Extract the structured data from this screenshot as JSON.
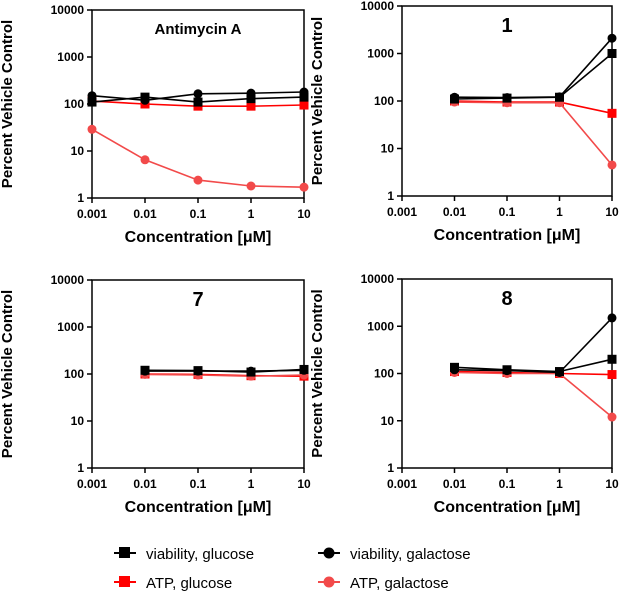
{
  "colors": {
    "black": "#000000",
    "red": "#ff0000",
    "light_red": "#f24a4a",
    "axis": "#000000"
  },
  "legend": [
    {
      "label": "viability, glucose",
      "marker": "square",
      "color": "#000000"
    },
    {
      "label": "viability, galactose",
      "marker": "circle",
      "color": "#000000"
    },
    {
      "label": "ATP, glucose",
      "marker": "square",
      "color": "#ff0000"
    },
    {
      "label": "ATP, galactose",
      "marker": "circle",
      "color": "#f24a4a"
    }
  ],
  "chart_data": [
    {
      "type": "line",
      "title": "Antimycin A",
      "title_style": "small",
      "xlabel": "Concentration [μM]",
      "ylabel": "Percent Vehicle Control",
      "xscale": "log",
      "yscale": "log",
      "xlim": [
        0.001,
        10
      ],
      "ylim": [
        1,
        10000
      ],
      "xticks": [
        0.001,
        0.01,
        0.1,
        1,
        10
      ],
      "xtick_labels": [
        "0.001",
        "0.01",
        "0.1",
        "1",
        "10"
      ],
      "yticks": [
        1,
        10,
        100,
        1000,
        10000
      ],
      "ytick_labels": [
        "1",
        "10",
        "100",
        "1000",
        "10000"
      ],
      "x": [
        0.001,
        0.01,
        0.1,
        1,
        10
      ],
      "series": [
        {
          "name": "viability, glucose",
          "values": [
            110,
            140,
            110,
            130,
            140
          ]
        },
        {
          "name": "viability, galactose",
          "values": [
            150,
            120,
            165,
            170,
            180
          ]
        },
        {
          "name": "ATP, glucose",
          "values": [
            115,
            100,
            90,
            90,
            95
          ]
        },
        {
          "name": "ATP, galactose",
          "values": [
            29,
            6.5,
            2.4,
            1.8,
            1.7
          ]
        }
      ]
    },
    {
      "type": "line",
      "title": "1",
      "title_style": "large",
      "xlabel": "Concentration [μM]",
      "ylabel": "Percent Vehicle Control",
      "xscale": "log",
      "yscale": "log",
      "xlim": [
        0.001,
        10
      ],
      "ylim": [
        1,
        10000
      ],
      "xticks": [
        0.001,
        0.01,
        0.1,
        1,
        10
      ],
      "xtick_labels": [
        "0.001",
        "0.01",
        "0.1",
        "1",
        "10"
      ],
      "yticks": [
        1,
        10,
        100,
        1000,
        10000
      ],
      "ytick_labels": [
        "1",
        "10",
        "100",
        "1000",
        "10000"
      ],
      "x": [
        0.01,
        0.1,
        1,
        10
      ],
      "series": [
        {
          "name": "viability, glucose",
          "values": [
            110,
            115,
            120,
            1000
          ]
        },
        {
          "name": "viability, galactose",
          "values": [
            120,
            118,
            122,
            2100
          ]
        },
        {
          "name": "ATP, glucose",
          "values": [
            100,
            95,
            95,
            55
          ]
        },
        {
          "name": "ATP, galactose",
          "values": [
            95,
            92,
            92,
            4.5
          ]
        }
      ]
    },
    {
      "type": "line",
      "title": "7",
      "title_style": "large",
      "xlabel": "Concentration [μM]",
      "ylabel": "Percent Vehicle Control",
      "xscale": "log",
      "yscale": "log",
      "xlim": [
        0.001,
        10
      ],
      "ylim": [
        1,
        10000
      ],
      "xticks": [
        0.001,
        0.01,
        0.1,
        1,
        10
      ],
      "xtick_labels": [
        "0.001",
        "0.01",
        "0.1",
        "1",
        "10"
      ],
      "yticks": [
        1,
        10,
        100,
        1000,
        10000
      ],
      "ytick_labels": [
        "1",
        "10",
        "100",
        "1000",
        "10000"
      ],
      "x": [
        0.01,
        0.1,
        1,
        10
      ],
      "series": [
        {
          "name": "viability, glucose",
          "values": [
            120,
            118,
            110,
            125
          ]
        },
        {
          "name": "viability, galactose",
          "values": [
            115,
            115,
            115,
            120
          ]
        },
        {
          "name": "ATP, glucose",
          "values": [
            100,
            98,
            92,
            90
          ]
        },
        {
          "name": "ATP, galactose",
          "values": [
            98,
            95,
            90,
            95
          ]
        }
      ]
    },
    {
      "type": "line",
      "title": "8",
      "title_style": "large",
      "xlabel": "Concentration [μM]",
      "ylabel": "Percent Vehicle Control",
      "xscale": "log",
      "yscale": "log",
      "xlim": [
        0.001,
        10
      ],
      "ylim": [
        1,
        10000
      ],
      "xticks": [
        0.001,
        0.01,
        0.1,
        1,
        10
      ],
      "xtick_labels": [
        "0.001",
        "0.01",
        "0.1",
        "1",
        "10"
      ],
      "yticks": [
        1,
        10,
        100,
        1000,
        10000
      ],
      "ytick_labels": [
        "1",
        "10",
        "100",
        "1000",
        "10000"
      ],
      "x": [
        0.01,
        0.1,
        1,
        10
      ],
      "series": [
        {
          "name": "viability, glucose",
          "values": [
            135,
            120,
            110,
            200
          ]
        },
        {
          "name": "viability, galactose",
          "values": [
            120,
            115,
            105,
            1500
          ]
        },
        {
          "name": "ATP, glucose",
          "values": [
            110,
            105,
            100,
            95
          ]
        },
        {
          "name": "ATP, galactose",
          "values": [
            105,
            100,
            100,
            12
          ]
        }
      ]
    }
  ]
}
